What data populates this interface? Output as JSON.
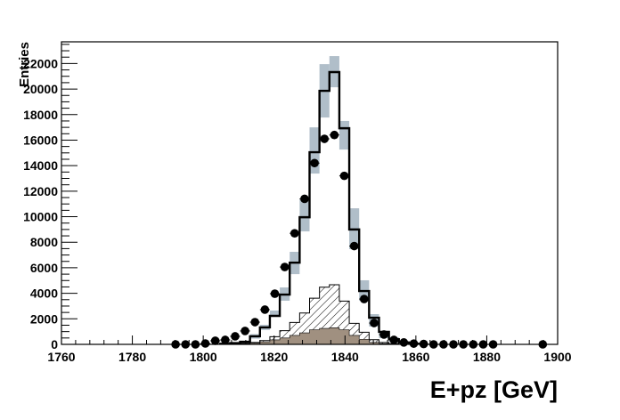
{
  "chart_data": {
    "type": "bar",
    "title": "",
    "xlabel": "E+pz [GeV]",
    "ylabel": "Entries",
    "xlim": [
      1760,
      1900
    ],
    "ylim": [
      0,
      23700
    ],
    "bins": {
      "start": 1760,
      "width": 2.8,
      "count": 50
    },
    "xticks": [
      "1760",
      "1780",
      "1800",
      "1820",
      "1840",
      "1860",
      "1880",
      "1900"
    ],
    "yticks": [
      "0",
      "2000",
      "4000",
      "6000",
      "8000",
      "10000",
      "12000",
      "14000",
      "16000",
      "18000",
      "20000",
      "22000"
    ],
    "grid": false,
    "colors": {
      "band": "#b0bec9",
      "signal_fill": "#a09080",
      "mc_line": "#000000",
      "data": "#000000",
      "hatch": "#000000"
    },
    "series": [
      {
        "kind": "mc-total-step",
        "first_bin": 16,
        "values": [
          50,
          100,
          200,
          630,
          1330,
          2230,
          3900,
          6400,
          9960,
          15050,
          19860,
          21330,
          16930,
          9000,
          4180,
          2090,
          980,
          400,
          150,
          50
        ]
      },
      {
        "kind": "mc-uncertainty-band",
        "first_bin": 19,
        "low": [
          450,
          1130,
          2230,
          3420,
          5500,
          8850,
          13380,
          17770,
          20140,
          15260,
          7460,
          3420,
          1390,
          490,
          200,
          60
        ],
        "high": [
          800,
          1530,
          2650,
          4460,
          7250,
          11430,
          17000,
          21950,
          22580,
          17500,
          10660,
          5020,
          2370,
          1050,
          560,
          240
        ]
      },
      {
        "kind": "hatched-step",
        "first_bin": 18,
        "values": [
          80,
          150,
          300,
          600,
          1070,
          1720,
          2460,
          3620,
          4480,
          4670,
          3390,
          1650,
          950,
          370,
          150,
          50
        ]
      },
      {
        "kind": "filled-step",
        "first_bin": 18,
        "values": [
          40,
          100,
          200,
          350,
          500,
          700,
          900,
          1150,
          1250,
          1300,
          1150,
          700,
          400,
          150,
          60,
          20
        ]
      },
      {
        "kind": "data-points",
        "first_bin": 11,
        "values": [
          0,
          0,
          0,
          70,
          280,
          350,
          630,
          1050,
          1740,
          2720,
          3970,
          6060,
          8700,
          11400,
          14200,
          16100,
          16400,
          13200,
          7700,
          3550,
          1670,
          770,
          350,
          150,
          60,
          30,
          0,
          0,
          0,
          0,
          0,
          0,
          0,
          null,
          null,
          null,
          null,
          0
        ]
      }
    ]
  }
}
